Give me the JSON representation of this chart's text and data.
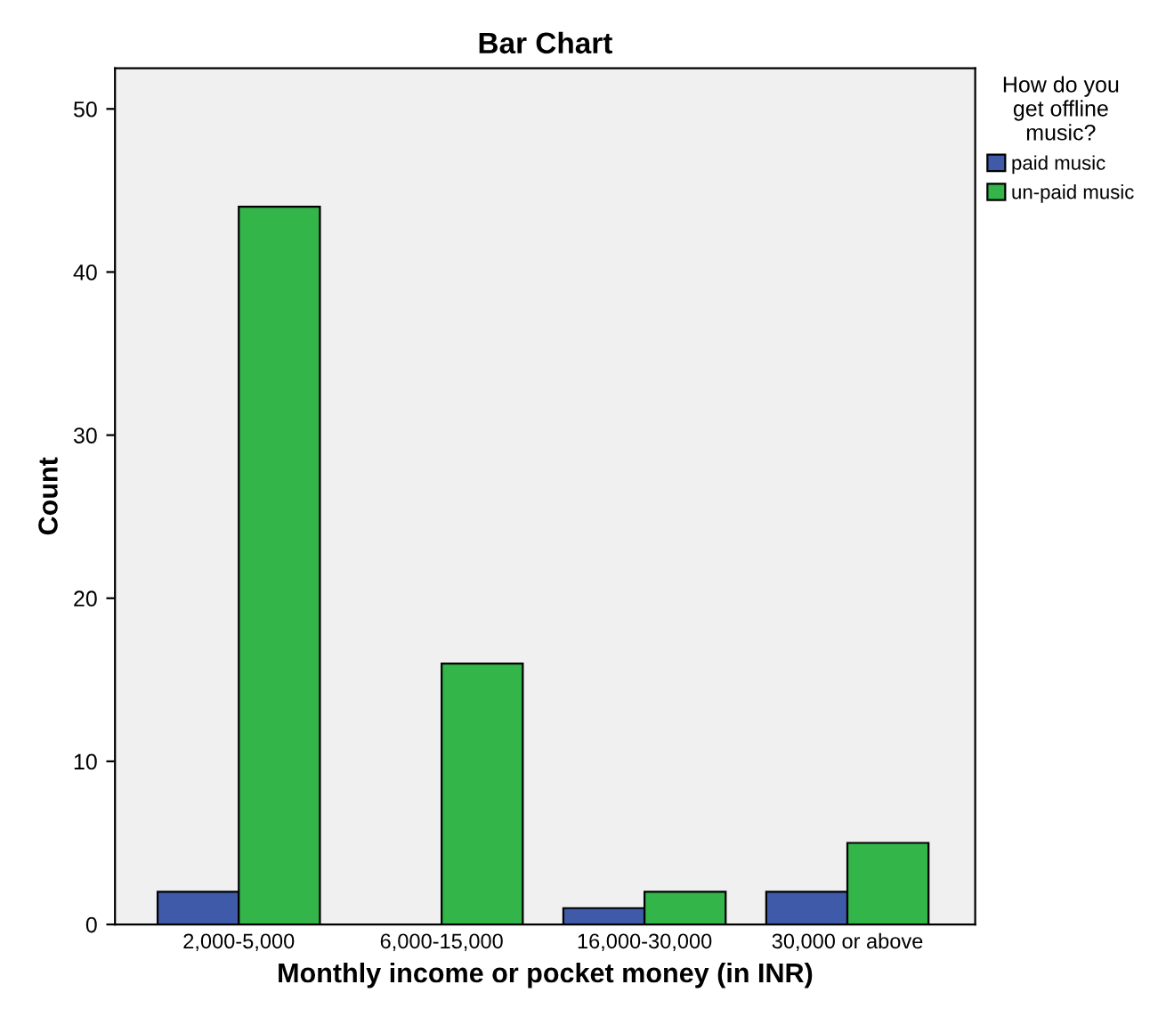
{
  "chart_data": {
    "type": "bar",
    "title": "Bar Chart",
    "xlabel": "Monthly income or pocket money (in INR)",
    "ylabel": "Count",
    "legend_title": "How do you\nget offline\nmusic?",
    "categories": [
      "2,000-5,000",
      "6,000-15,000",
      "16,000-30,000",
      "30,000 or above"
    ],
    "series": [
      {
        "name": "paid music",
        "color": "#3e5aa8",
        "values": [
          2,
          null,
          1,
          2
        ]
      },
      {
        "name": "un-paid music",
        "color": "#33b54a",
        "values": [
          44,
          16,
          2,
          5
        ]
      }
    ],
    "ylim": [
      0,
      52.5
    ],
    "yticks": [
      0,
      10,
      20,
      30,
      40,
      50
    ],
    "grid": false,
    "legend": "right"
  }
}
